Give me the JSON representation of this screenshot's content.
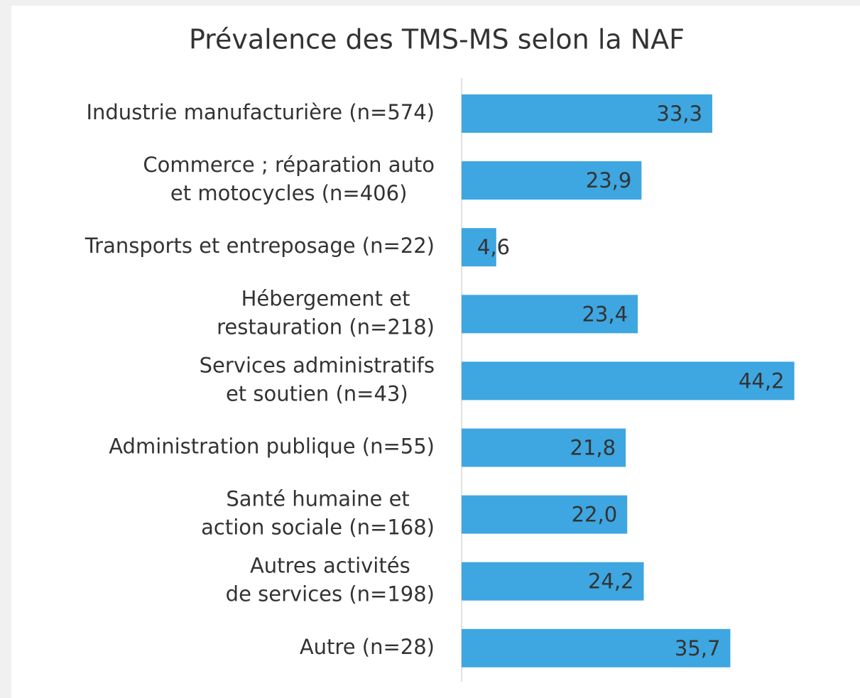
{
  "chart_data": {
    "type": "barh",
    "title": "Prévalence des TMS-MS selon la NAF",
    "categories": [
      [
        "Industrie manufacturière (n=574)"
      ],
      [
        "Commerce ; réparation auto",
        "et motocycles (n=406)"
      ],
      [
        "Transports et entreposage (n=22)"
      ],
      [
        "Hébergement et",
        "restauration (n=218)"
      ],
      [
        "Services administratifs",
        "et soutien (n=43)"
      ],
      [
        "Administration publique (n=55)"
      ],
      [
        "Santé humaine et",
        "action sociale (n=168)"
      ],
      [
        "Autres activités",
        "de services (n=198)"
      ],
      [
        "Autre (n=28)"
      ]
    ],
    "values": [
      33.3,
      23.9,
      4.6,
      23.4,
      44.2,
      21.8,
      22.0,
      24.2,
      35.7
    ],
    "value_labels": [
      "33,3",
      "23,9",
      "4,6",
      "23,4",
      "44,2",
      "21,8",
      "22,0",
      "24,2",
      "35,7"
    ],
    "color": "#3ea6e0",
    "xlim": [
      0,
      50
    ]
  }
}
